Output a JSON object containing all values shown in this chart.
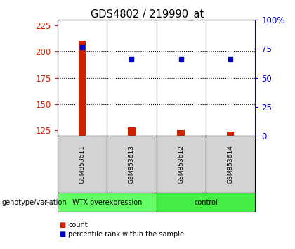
{
  "title": "GDS4802 / 219990_at",
  "samples": [
    "GSM853611",
    "GSM853613",
    "GSM853612",
    "GSM853614"
  ],
  "bar_values": [
    210,
    128,
    125,
    124
  ],
  "dot_values": [
    204,
    193,
    193,
    193
  ],
  "ylim_left": [
    120,
    230
  ],
  "ylim_right": [
    0,
    100
  ],
  "yticks_left": [
    125,
    150,
    175,
    200,
    225
  ],
  "yticks_right": [
    0,
    25,
    50,
    75,
    100
  ],
  "bar_color": "#cc2200",
  "dot_color": "#0000cc",
  "plot_bg": "#ffffff",
  "sample_bg": "#d3d3d3",
  "groups": [
    {
      "label": "WTX overexpression",
      "samples": [
        0,
        1
      ],
      "color": "#66ff66"
    },
    {
      "label": "control",
      "samples": [
        2,
        3
      ],
      "color": "#44ee44"
    }
  ],
  "group_label": "genotype/variation",
  "legend_count": "count",
  "legend_percentile": "percentile rank within the sample",
  "left_axis_color": "#cc2200",
  "right_axis_color": "#0000cc",
  "bar_width": 0.15,
  "grid_lines": [
    150,
    175,
    200
  ]
}
